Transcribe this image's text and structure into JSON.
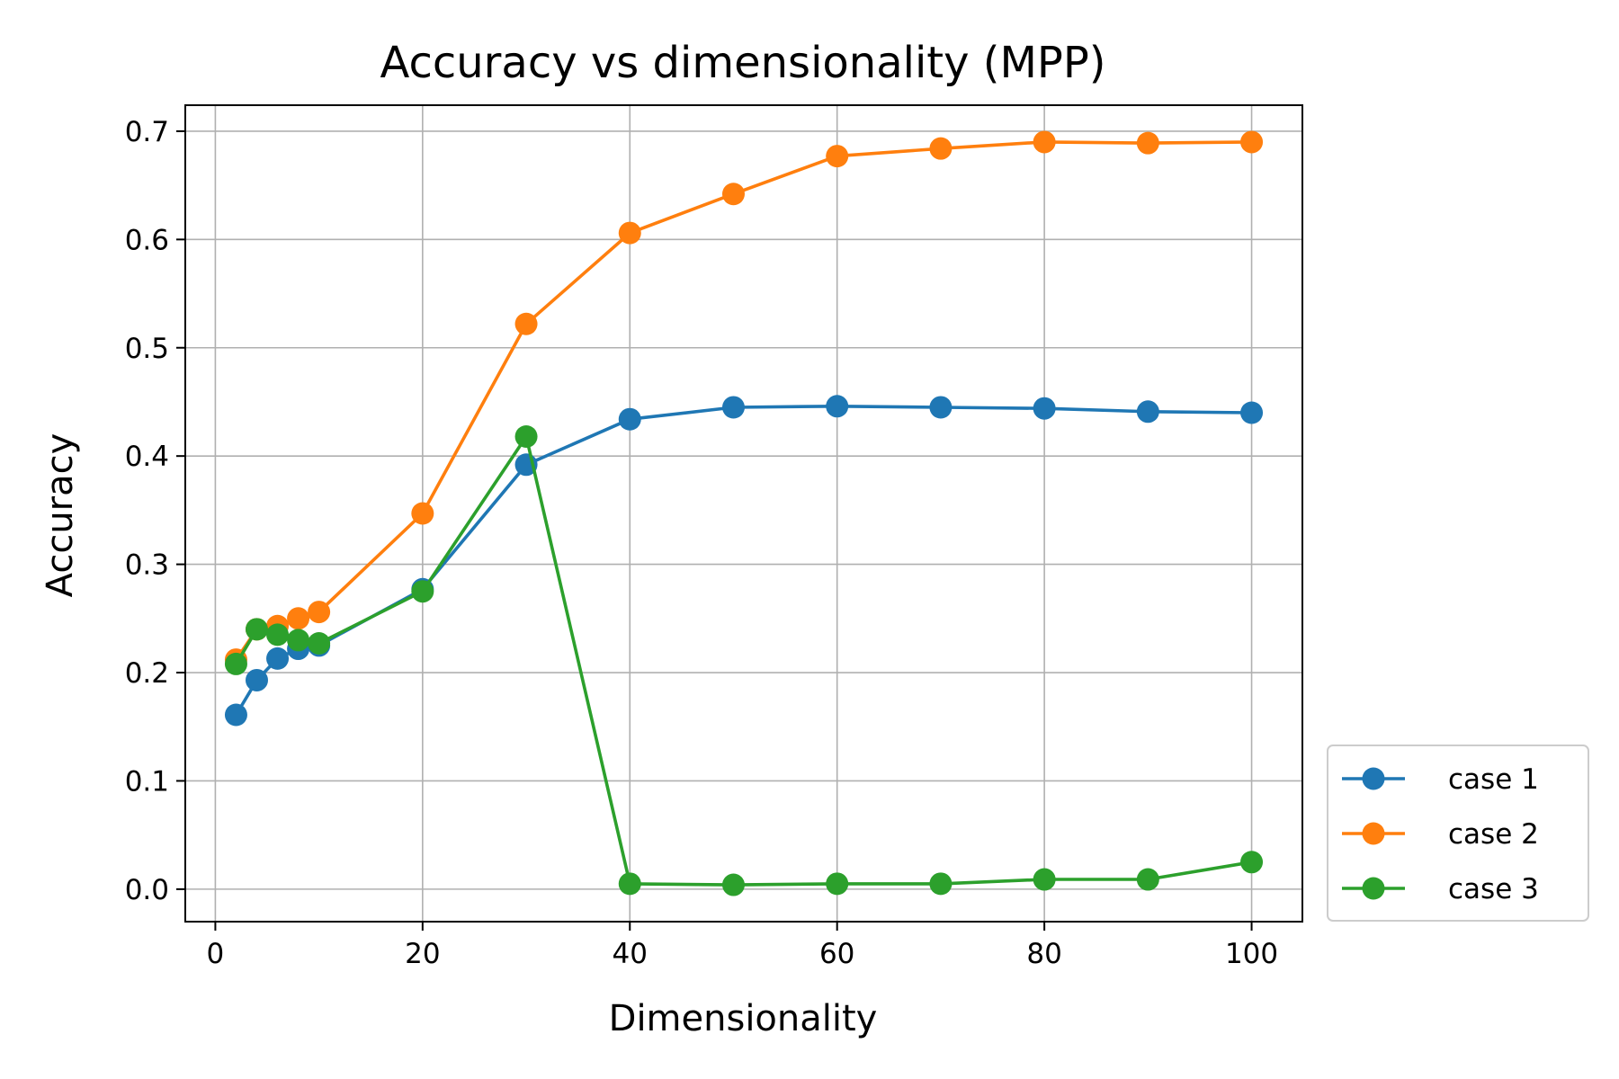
{
  "chart_data": {
    "type": "line",
    "title": "Accuracy vs dimensionality (MPP)",
    "xlabel": "Dimensionality",
    "ylabel": "Accuracy",
    "xlim": [
      -2.9,
      104.9
    ],
    "ylim": [
      -0.03,
      0.724
    ],
    "x_ticks": [
      0,
      20,
      40,
      60,
      80,
      100
    ],
    "x_tick_labels": [
      "0",
      "20",
      "40",
      "60",
      "80",
      "100"
    ],
    "y_ticks": [
      0.0,
      0.1,
      0.2,
      0.3,
      0.4,
      0.5,
      0.6,
      0.7
    ],
    "y_tick_labels": [
      "0.0",
      "0.1",
      "0.2",
      "0.3",
      "0.4",
      "0.5",
      "0.6",
      "0.7"
    ],
    "grid": true,
    "legend_position": "outside-lower-right",
    "x": [
      2,
      4,
      6,
      8,
      10,
      20,
      30,
      40,
      50,
      60,
      70,
      80,
      90,
      100
    ],
    "series": [
      {
        "name": "case 1",
        "color": "#1f77b4",
        "values": [
          0.161,
          0.193,
          0.213,
          0.222,
          0.225,
          0.277,
          0.392,
          0.434,
          0.445,
          0.446,
          0.445,
          0.444,
          0.441,
          0.44
        ]
      },
      {
        "name": "case 2",
        "color": "#ff7f0e",
        "values": [
          0.212,
          0.24,
          0.243,
          0.25,
          0.256,
          0.347,
          0.522,
          0.606,
          0.642,
          0.677,
          0.684,
          0.69,
          0.689,
          0.69
        ]
      },
      {
        "name": "case 3",
        "color": "#2ca02c",
        "values": [
          0.208,
          0.24,
          0.235,
          0.23,
          0.227,
          0.275,
          0.418,
          0.005,
          0.004,
          0.005,
          0.005,
          0.009,
          0.009,
          0.025
        ]
      }
    ]
  }
}
